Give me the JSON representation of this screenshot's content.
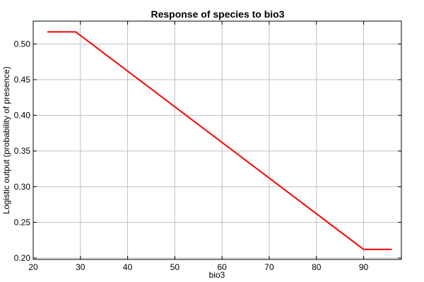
{
  "chart_data": {
    "type": "line",
    "title": "Response of species to bio3",
    "xlabel": "bio3",
    "ylabel": "Logistic output (probability of presence)",
    "xlim": [
      20,
      98
    ],
    "ylim": [
      0.198,
      0.532
    ],
    "x_ticks": [
      "20",
      "30",
      "40",
      "50",
      "60",
      "70",
      "80",
      "90"
    ],
    "y_ticks": [
      "0.20",
      "0.25",
      "0.30",
      "0.35",
      "0.40",
      "0.45",
      "0.50"
    ],
    "grid": true,
    "series": [
      {
        "color": "#ff0000",
        "x": [
          23,
          29,
          90,
          96
        ],
        "y": [
          0.517,
          0.517,
          0.212,
          0.212
        ]
      }
    ]
  }
}
